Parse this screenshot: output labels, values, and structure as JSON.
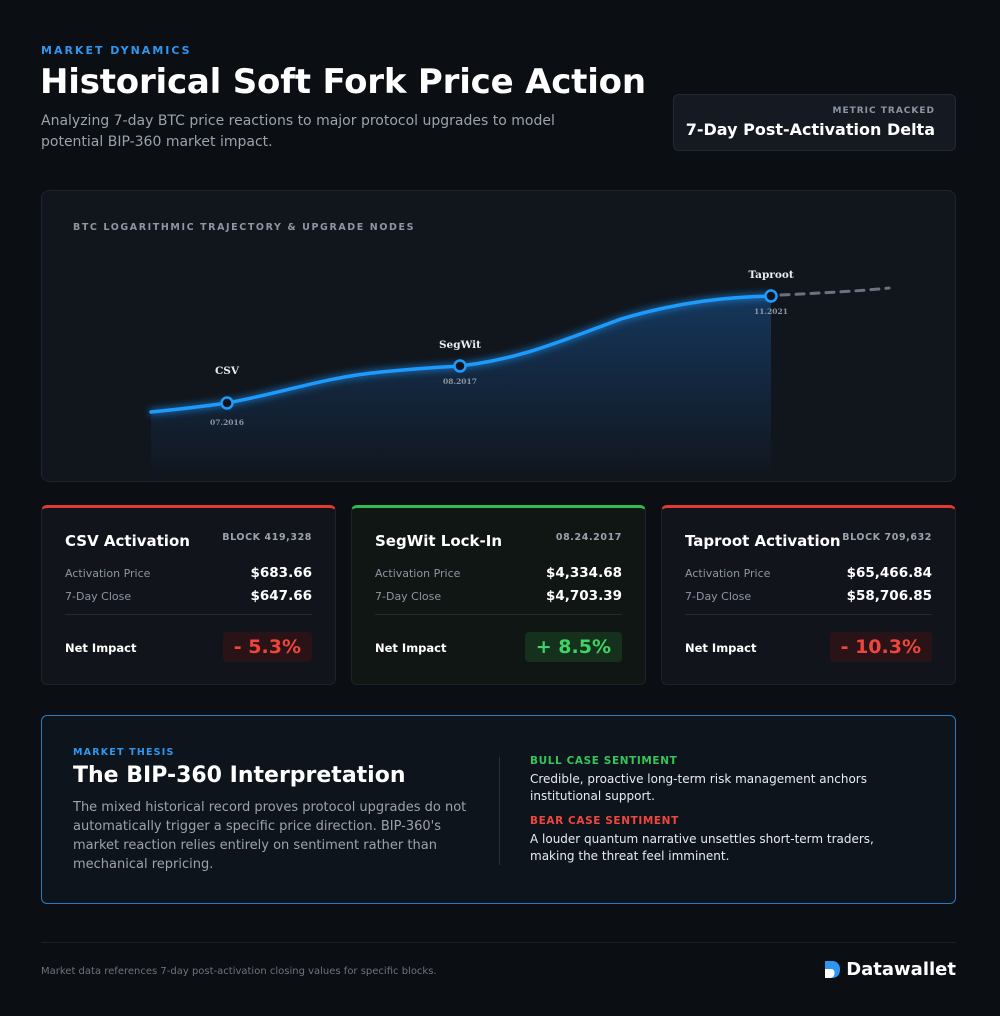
{
  "header": {
    "eyebrow": "MARKET DYNAMICS",
    "title": "Historical Soft Fork Price Action",
    "subtitle": "Analyzing 7-day BTC price reactions to major protocol upgrades to model potential BIP-360 market impact."
  },
  "metric": {
    "label": "METRIC TRACKED",
    "value": "7-Day Post-Activation Delta"
  },
  "chart_data": {
    "type": "line",
    "title": "BTC LOGARITHMIC TRAJECTORY & UPGRADE NODES",
    "scale": "log",
    "xlabel": "",
    "ylabel": "",
    "grid": false,
    "legend": "none",
    "nodes": [
      {
        "name": "CSV",
        "date": "07.2016"
      },
      {
        "name": "SegWit",
        "date": "08.2017"
      },
      {
        "name": "Taproot",
        "date": "11.2021"
      }
    ],
    "projection": "dashed continuation after Taproot",
    "colors": {
      "line": "#1f9bff",
      "projection": "#6a7280"
    }
  },
  "cards": [
    {
      "name": "CSV Activation",
      "ref": "BLOCK 419,328",
      "activation_label": "Activation Price",
      "activation_price": "$683.66",
      "close_label": "7-Day Close",
      "close_price": "$647.66",
      "net_label": "Net Impact",
      "net_impact": "- 5.3%"
    },
    {
      "name": "SegWit Lock-In",
      "ref": "08.24.2017",
      "activation_label": "Activation Price",
      "activation_price": "$4,334.68",
      "close_label": "7-Day Close",
      "close_price": "$4,703.39",
      "net_label": "Net Impact",
      "net_impact": "+ 8.5%"
    },
    {
      "name": "Taproot Activation",
      "ref": "BLOCK 709,632",
      "activation_label": "Activation Price",
      "activation_price": "$65,466.84",
      "close_label": "7-Day Close",
      "close_price": "$58,706.85",
      "net_label": "Net Impact",
      "net_impact": "- 10.3%"
    }
  ],
  "thesis": {
    "eyebrow": "MARKET THESIS",
    "title": "The BIP-360 Interpretation",
    "body": "The mixed historical record proves protocol upgrades do not automatically trigger a specific price direction. BIP-360's market reaction relies entirely on sentiment rather than mechanical repricing.",
    "bull_heading": "BULL CASE SENTIMENT",
    "bull_text": "Credible, proactive long-term risk management anchors institutional support.",
    "bear_heading": "BEAR CASE SENTIMENT",
    "bear_text": "A louder quantum narrative unsettles short-term traders, making the threat feel imminent."
  },
  "footer": {
    "note": "Market data references 7-day post-activation closing values for specific blocks.",
    "brand": "Datawallet"
  },
  "colors": {
    "accent": "#2f97f0",
    "negative": "#f0453b",
    "positive": "#3fd265",
    "background": "#0b0e13"
  }
}
